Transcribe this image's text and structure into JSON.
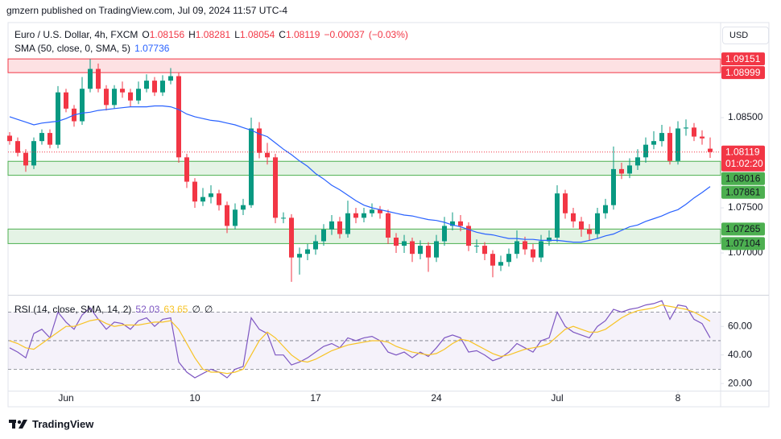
{
  "header": "gmzern published on TradingView.com, Jul 09, 2024 11:57 UTC-4",
  "footer": "TradingView",
  "currency": "USD",
  "countdown": "01:02:20",
  "chart_data": [
    {
      "type": "candlestick",
      "title": "Euro / U.S. Dollar, 4h, FXCM",
      "ohlc_prefixes": [
        "O",
        "H",
        "L",
        "C"
      ],
      "categories": [
        null,
        null,
        null,
        null,
        null,
        null,
        null,
        "Jun",
        null,
        null,
        null,
        null,
        null,
        null,
        null,
        null,
        null,
        null,
        null,
        null,
        null,
        null,
        null,
        "10",
        null,
        null,
        null,
        null,
        null,
        null,
        null,
        null,
        null,
        null,
        null,
        null,
        null,
        null,
        "17",
        null,
        null,
        null,
        null,
        null,
        null,
        null,
        null,
        null,
        null,
        null,
        null,
        null,
        null,
        "24",
        null,
        null,
        null,
        null,
        null,
        null,
        null,
        null,
        null,
        null,
        null,
        null,
        null,
        null,
        "Jul",
        null,
        null,
        null,
        null,
        null,
        null,
        null,
        null,
        null,
        null,
        null,
        null,
        null,
        null,
        "8",
        null,
        null,
        null,
        null
      ],
      "open": [
        1.083,
        1.0824,
        1.0811,
        1.0797,
        1.0824,
        1.0833,
        1.082,
        1.0878,
        1.086,
        1.0846,
        1.0882,
        1.0904,
        1.0882,
        1.0864,
        1.0882,
        1.0878,
        1.0869,
        1.0882,
        1.0891,
        1.0878,
        1.0891,
        1.0896,
        1.0806,
        1.0779,
        1.0757,
        1.0762,
        1.0766,
        1.0753,
        1.073,
        1.0748,
        1.0753,
        1.0838,
        1.0811,
        1.0806,
        1.0739,
        1.0739,
        1.0695,
        1.0699,
        1.0704,
        1.0713,
        1.0726,
        1.0735,
        1.0721,
        1.0744,
        1.0739,
        1.0744,
        1.0748,
        1.0744,
        1.0717,
        1.0708,
        1.0713,
        1.0699,
        1.0708,
        1.0695,
        1.0713,
        1.073,
        1.0735,
        1.073,
        1.0708,
        1.0708,
        1.0699,
        1.0686,
        1.069,
        1.0699,
        1.0713,
        1.0704,
        1.0695,
        1.0713,
        1.0717,
        1.0766,
        1.0744,
        1.0735,
        1.0726,
        1.0721,
        1.0744,
        1.0753,
        1.0793,
        1.0788,
        1.0797,
        1.0806,
        1.082,
        1.0824,
        1.0833,
        1.0802,
        1.0838,
        1.0839,
        1.0829,
        1.08156
      ],
      "high": [
        1.0834,
        1.0828,
        1.0815,
        1.0828,
        1.0837,
        1.0837,
        1.0885,
        1.0882,
        1.0864,
        1.0895,
        1.0915,
        1.091,
        1.0886,
        1.0886,
        1.089,
        1.0882,
        1.089,
        1.0898,
        1.0895,
        1.0897,
        1.0905,
        1.09,
        1.081,
        1.0783,
        1.0772,
        1.0775,
        1.077,
        1.0757,
        1.0755,
        1.076,
        1.085,
        1.0845,
        1.0822,
        1.081,
        1.0745,
        1.0743,
        1.0706,
        1.071,
        1.072,
        1.0732,
        1.0742,
        1.074,
        1.0758,
        1.075,
        1.075,
        1.0755,
        1.0752,
        1.0748,
        1.0722,
        1.072,
        1.0717,
        1.0714,
        1.0712,
        1.072,
        1.074,
        1.0745,
        1.0742,
        1.0734,
        1.0715,
        1.0712,
        1.0703,
        1.0697,
        1.0705,
        1.0725,
        1.0718,
        1.071,
        1.072,
        1.0725,
        1.0775,
        1.077,
        1.075,
        1.074,
        1.0732,
        1.075,
        1.076,
        1.0818,
        1.08,
        1.0805,
        1.0815,
        1.0828,
        1.0835,
        1.0842,
        1.084,
        1.0846,
        1.0848,
        1.0844,
        1.0836,
        1.08281
      ],
      "low": [
        1.082,
        1.0807,
        1.079,
        1.0793,
        1.082,
        1.0816,
        1.0816,
        1.0856,
        1.084,
        1.0842,
        1.0878,
        1.0878,
        1.0858,
        1.086,
        1.0872,
        1.0862,
        1.0865,
        1.0878,
        1.0874,
        1.0874,
        1.0887,
        1.08,
        1.0772,
        1.075,
        1.0752,
        1.0755,
        1.0747,
        1.0722,
        1.0726,
        1.0742,
        1.075,
        1.0805,
        1.0798,
        1.0733,
        1.0733,
        1.0668,
        1.0676,
        1.0692,
        1.0698,
        1.0708,
        1.072,
        1.0716,
        1.0717,
        1.0733,
        1.0734,
        1.074,
        1.0738,
        1.071,
        1.07,
        1.07,
        1.069,
        1.0693,
        1.0679,
        1.069,
        1.0708,
        1.0725,
        1.0724,
        1.0702,
        1.07,
        1.0692,
        1.0673,
        1.068,
        1.0685,
        1.0694,
        1.0698,
        1.069,
        1.069,
        1.0708,
        1.0712,
        1.0738,
        1.0728,
        1.0718,
        1.0714,
        1.0716,
        1.0738,
        1.0748,
        1.0782,
        1.0783,
        1.0792,
        1.08,
        1.0815,
        1.0818,
        1.0798,
        1.0798,
        1.083,
        1.0824,
        1.082,
        1.08054
      ],
      "close": [
        1.0824,
        1.0811,
        1.0797,
        1.0824,
        1.0833,
        1.082,
        1.0878,
        1.086,
        1.0846,
        1.0882,
        1.0904,
        1.0882,
        1.0864,
        1.0882,
        1.0878,
        1.0869,
        1.0882,
        1.0891,
        1.0878,
        1.0891,
        1.0896,
        1.0806,
        1.0779,
        1.0757,
        1.0762,
        1.0766,
        1.0753,
        1.073,
        1.0748,
        1.0753,
        1.0838,
        1.0811,
        1.0806,
        1.0739,
        1.0739,
        1.0695,
        1.0699,
        1.0704,
        1.0713,
        1.0726,
        1.0735,
        1.0721,
        1.0744,
        1.0739,
        1.0744,
        1.0748,
        1.0744,
        1.0717,
        1.0708,
        1.0713,
        1.0699,
        1.0708,
        1.0695,
        1.0713,
        1.073,
        1.0735,
        1.073,
        1.0708,
        1.0708,
        1.0699,
        1.0686,
        1.069,
        1.0699,
        1.0713,
        1.0704,
        1.0695,
        1.0713,
        1.0717,
        1.0766,
        1.0744,
        1.0735,
        1.0726,
        1.0721,
        1.0744,
        1.0753,
        1.0793,
        1.0788,
        1.0797,
        1.0806,
        1.082,
        1.0824,
        1.0833,
        1.0802,
        1.0838,
        1.0839,
        1.0829,
        1.0827,
        1.08119
      ],
      "change": {
        "value": -0.00037,
        "label": "−0.00037"
      },
      "change_pct": {
        "value": -0.03,
        "label": "(−0.03%)"
      },
      "up_color": "#089981",
      "down_color": "#f23645",
      "ylim": [
        1.06545,
        1.09554
      ],
      "yticks": [
        {
          "value": 1.085,
          "label": "1.08500"
        },
        {
          "value": 1.075,
          "label": "1.07500"
        },
        {
          "value": 1.07,
          "label": "1.07000"
        }
      ],
      "grid": false,
      "sma": {
        "name": "SMA (50, close, 0, SMA, 5)",
        "color": "#2962ff",
        "values": [
          1.0851,
          1.0848,
          1.0845,
          1.0842,
          1.0844,
          1.0845,
          1.0846,
          1.0849,
          1.0853,
          1.0855,
          1.0856,
          1.0858,
          1.0859,
          1.086,
          1.0861,
          1.0862,
          1.0862,
          1.0862,
          1.0863,
          1.0863,
          1.0862,
          1.0859,
          1.0854,
          1.0851,
          1.0849,
          1.0847,
          1.0846,
          1.0844,
          1.0842,
          1.0839,
          1.0836,
          1.0832,
          1.0829,
          1.0822,
          1.0815,
          1.0809,
          1.0802,
          1.0796,
          1.0788,
          1.0782,
          1.0775,
          1.077,
          1.0764,
          1.0758,
          1.0753,
          1.075,
          1.0748,
          1.0746,
          1.0744,
          1.0742,
          1.0741,
          1.0739,
          1.0737,
          1.0736,
          1.0734,
          1.0731,
          1.0729,
          1.0726,
          1.0723,
          1.0721,
          1.072,
          1.0718,
          1.0716,
          1.0716,
          1.0715,
          1.0715,
          1.0714,
          1.0714,
          1.0714,
          1.0713,
          1.0712,
          1.0712,
          1.0714,
          1.0716,
          1.0719,
          1.0721,
          1.0725,
          1.0729,
          1.0731,
          1.0735,
          1.0738,
          1.0741,
          1.0745,
          1.0748,
          1.0754,
          1.0761,
          1.0767,
          1.07736
        ]
      },
      "zones": [
        {
          "from": 1.08999,
          "to": 1.09151,
          "color": "#f23645",
          "text_color": "#ffffff"
        },
        {
          "from": 1.07861,
          "to": 1.08016,
          "color": "#4caf50",
          "text_color": "#131722"
        },
        {
          "from": 1.07104,
          "to": 1.07265,
          "color": "#4caf50",
          "text_color": "#131722"
        }
      ]
    },
    {
      "type": "line",
      "title": "RSI (14, close, SMA, 14, 2)",
      "series": [
        {
          "color": "#7e57c2",
          "values": [
            45,
            42,
            38,
            55,
            58,
            52,
            70,
            63,
            58,
            68,
            73,
            65,
            58,
            63,
            62,
            58,
            64,
            66,
            60,
            65,
            66,
            35,
            28,
            24,
            27,
            30,
            28,
            24,
            30,
            32,
            66,
            58,
            55,
            40,
            40,
            33,
            35,
            38,
            42,
            46,
            48,
            45,
            52,
            50,
            52,
            53,
            50,
            42,
            40,
            42,
            38,
            42,
            39,
            45,
            52,
            54,
            52,
            42,
            43,
            40,
            36,
            38,
            42,
            48,
            45,
            42,
            50,
            52,
            70,
            60,
            56,
            54,
            52,
            60,
            64,
            72,
            70,
            72,
            73,
            75,
            76,
            78,
            65,
            75,
            74,
            65,
            62,
            52.03
          ]
        },
        {
          "color": "#f7c325",
          "values": [
            50,
            48,
            45,
            44,
            48,
            52,
            56,
            60,
            60,
            62,
            64,
            65,
            62,
            60,
            61,
            61,
            61,
            62,
            63,
            63,
            64,
            58,
            48,
            38,
            30,
            28,
            28,
            27,
            28,
            30,
            40,
            50,
            56,
            52,
            46,
            40,
            36,
            35,
            37,
            40,
            43,
            45,
            47,
            48,
            49,
            50,
            50,
            49,
            46,
            44,
            42,
            41,
            40,
            41,
            44,
            48,
            51,
            50,
            47,
            44,
            41,
            39,
            40,
            42,
            44,
            45,
            46,
            48,
            53,
            58,
            60,
            58,
            56,
            56,
            58,
            62,
            66,
            69,
            71,
            72,
            73,
            75,
            74,
            73,
            72,
            70,
            67,
            63.65
          ]
        }
      ],
      "na_labels": [
        "∅",
        "∅"
      ],
      "ylim": [
        15,
        81
      ],
      "yticks": [
        {
          "value": 20,
          "label": "20.00"
        },
        {
          "value": 40,
          "label": "40.00"
        },
        {
          "value": 60,
          "label": "60.00"
        }
      ],
      "bands": [
        30,
        50,
        70
      ],
      "band_color": "#7e57c2",
      "grid": false
    }
  ]
}
